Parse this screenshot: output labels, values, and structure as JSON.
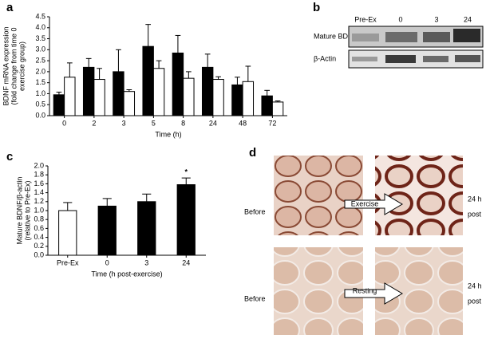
{
  "chart_data": [
    {
      "type": "bar",
      "panel": "a",
      "ylabel": [
        "BDNF mRNA expression",
        "(fold change from time 0",
        "exercise group)"
      ],
      "xlabel": "Time (h)",
      "categories": [
        "0",
        "2",
        "3",
        "5",
        "8",
        "24",
        "48",
        "72"
      ],
      "series": [
        {
          "color": "#000000",
          "values": [
            0.95,
            2.2,
            2.0,
            3.15,
            2.85,
            2.2,
            1.4,
            0.9
          ],
          "errors": [
            0.12,
            0.4,
            1.0,
            1.0,
            0.8,
            0.6,
            0.35,
            0.25
          ]
        },
        {
          "color": "#ffffff",
          "values": [
            1.75,
            1.65,
            1.1,
            2.15,
            1.7,
            1.65,
            1.55,
            0.62
          ],
          "errors": [
            0.65,
            0.5,
            0.08,
            0.35,
            0.3,
            0.12,
            0.7,
            0.05
          ]
        }
      ],
      "ylim": [
        0,
        4.5
      ],
      "yticks": [
        {
          "value": 0,
          "label": "0.0"
        },
        {
          "value": 0.5,
          "label": "0.5"
        },
        {
          "value": 1,
          "label": "1.0"
        },
        {
          "value": 1.5,
          "label": "1.5"
        },
        {
          "value": 2,
          "label": "2.0"
        },
        {
          "value": 2.5,
          "label": "2.5"
        },
        {
          "value": 3,
          "label": "3.0"
        },
        {
          "value": 3.5,
          "label": "3.5"
        },
        {
          "value": 4,
          "label": "4.0"
        },
        {
          "value": 4.5,
          "label": "4.5"
        }
      ]
    },
    {
      "type": "bar",
      "panel": "c",
      "ylabel": [
        "Mature BDNF/β-actin",
        "(relative to Pre-Ex)"
      ],
      "xlabel": "Time (h post-exercise)",
      "categories": [
        "Pre-Ex",
        "0",
        "3",
        "24"
      ],
      "series": [
        {
          "colors": [
            "#ffffff",
            "#000000",
            "#000000",
            "#000000"
          ],
          "values": [
            1.0,
            1.1,
            1.2,
            1.58
          ],
          "errors": [
            0.18,
            0.17,
            0.17,
            0.15
          ],
          "annotations": [
            null,
            null,
            null,
            "*"
          ]
        }
      ],
      "ylim": [
        0,
        2
      ],
      "yticks": [
        {
          "value": 0,
          "label": "0.0"
        },
        {
          "value": 0.2,
          "label": "0.2"
        },
        {
          "value": 0.4,
          "label": "0.4"
        },
        {
          "value": 0.6,
          "label": "0.6"
        },
        {
          "value": 0.8,
          "label": "0.8"
        },
        {
          "value": 1,
          "label": "1.0"
        },
        {
          "value": 1.2,
          "label": "1.2"
        },
        {
          "value": 1.4,
          "label": "1.4"
        },
        {
          "value": 1.6,
          "label": "1.6"
        },
        {
          "value": 1.8,
          "label": "1.8"
        },
        {
          "value": 2,
          "label": "2.0"
        }
      ]
    }
  ],
  "blot": {
    "panel": "b",
    "lanes": [
      "Pre-Ex",
      "0",
      "3",
      "24"
    ],
    "rows": [
      "Mature BDNF",
      "β-Actin"
    ]
  },
  "histology": {
    "panel": "d",
    "rows": [
      {
        "before": "Before",
        "arrow": "Exercise",
        "after": [
          "24 h",
          "post"
        ]
      },
      {
        "before": "Before",
        "arrow": "Resting",
        "after": [
          "24 h",
          "post"
        ]
      }
    ]
  }
}
